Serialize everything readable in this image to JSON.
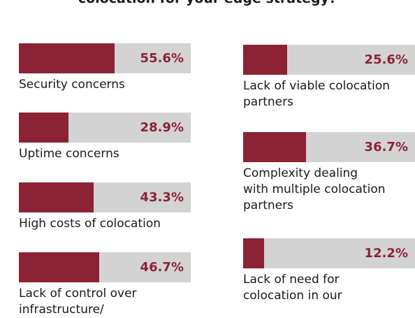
{
  "title": "colocation for your edge strategy?",
  "chart_data": {
    "type": "bar",
    "orientation": "horizontal",
    "xlim": [
      0,
      100
    ],
    "unit": "%",
    "colors": {
      "fill": "#8b2335",
      "track": "#d3d3d3",
      "value_text": "#8b2335"
    },
    "items": [
      {
        "label": "Security concerns",
        "value": 55.6,
        "value_label": "55.6%"
      },
      {
        "label": "Uptime concerns",
        "value": 28.9,
        "value_label": "28.9%"
      },
      {
        "label": "High costs of colocation",
        "value": 43.3,
        "value_label": "43.3%"
      },
      {
        "label": "Lack of control over\ninfrastructure/",
        "value": 46.7,
        "value_label": "46.7%"
      },
      {
        "label": "Lack of viable colocation\npartners",
        "value": 25.6,
        "value_label": "25.6%"
      },
      {
        "label": "Complexity dealing\nwith multiple colocation\npartners",
        "value": 36.7,
        "value_label": "36.7%"
      },
      {
        "label": "Lack of need for\ncolocation in our",
        "value": 12.2,
        "value_label": "12.2%"
      }
    ]
  }
}
